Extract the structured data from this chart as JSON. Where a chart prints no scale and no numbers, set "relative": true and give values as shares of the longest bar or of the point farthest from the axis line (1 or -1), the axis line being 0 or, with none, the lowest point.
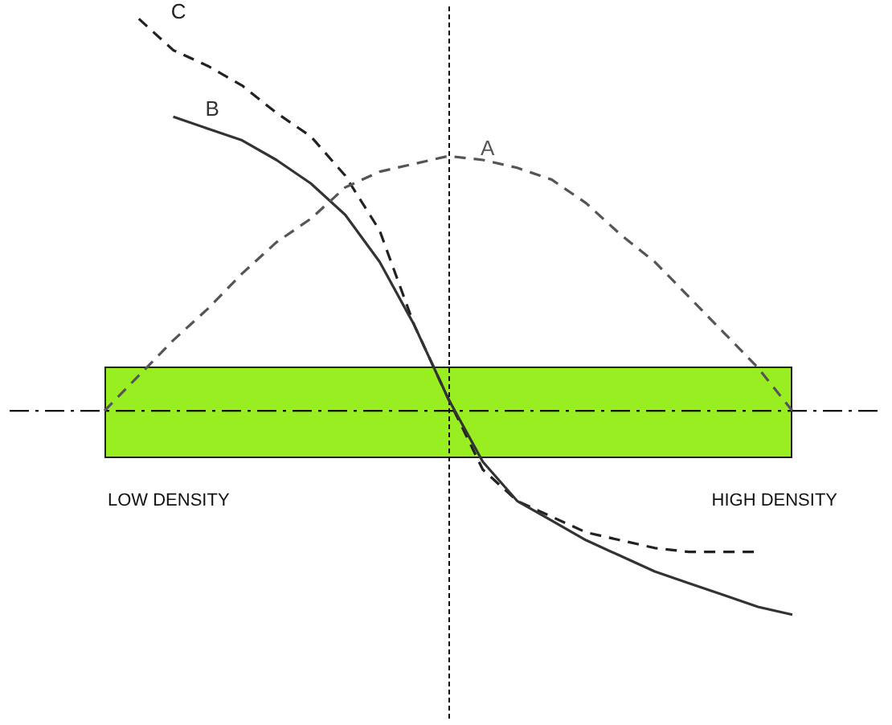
{
  "chart_data": {
    "type": "line",
    "relative": true,
    "legend": false,
    "marker": "none",
    "categories": [
      null,
      null,
      null,
      null,
      null,
      null,
      null,
      null,
      null,
      null,
      null,
      null,
      null,
      null,
      null,
      null,
      null,
      null,
      null,
      null,
      null
    ],
    "series": [
      {
        "name": "A",
        "color": "#555555",
        "line_style": "dashed",
        "values": [
          0,
          0.09,
          0.18,
          0.26,
          0.35,
          0.43,
          0.49,
          0.57,
          0.61,
          0.63,
          0.65,
          0.64,
          0.62,
          0.59,
          0.53,
          0.45,
          0.38,
          0.29,
          0.2,
          0.11,
          0
        ]
      },
      {
        "name": "B",
        "color": "#333333",
        "line_style": "solid",
        "values": [
          null,
          null,
          0.75,
          0.72,
          0.69,
          0.64,
          0.58,
          0.5,
          0.38,
          0.22,
          0.03,
          -0.13,
          -0.23,
          -0.28,
          -0.33,
          -0.37,
          -0.41,
          -0.44,
          -0.47,
          -0.5,
          -0.52
        ]
      },
      {
        "name": "C",
        "color": "#222222",
        "line_style": "dashed",
        "values": [
          null,
          1,
          0.92,
          0.88,
          0.83,
          0.76,
          0.7,
          0.6,
          0.46,
          0.22,
          0.03,
          -0.15,
          -0.23,
          -0.27,
          -0.31,
          -0.33,
          -0.35,
          -0.36,
          -0.36,
          -0.36,
          null
        ]
      }
    ],
    "ref_lines": [
      {
        "axis": "y",
        "value": 0,
        "color": "#111111",
        "line_style": "dashdot"
      }
    ],
    "annotations": [
      "LOW DENSITY",
      "HIGH DENSITY"
    ]
  }
}
